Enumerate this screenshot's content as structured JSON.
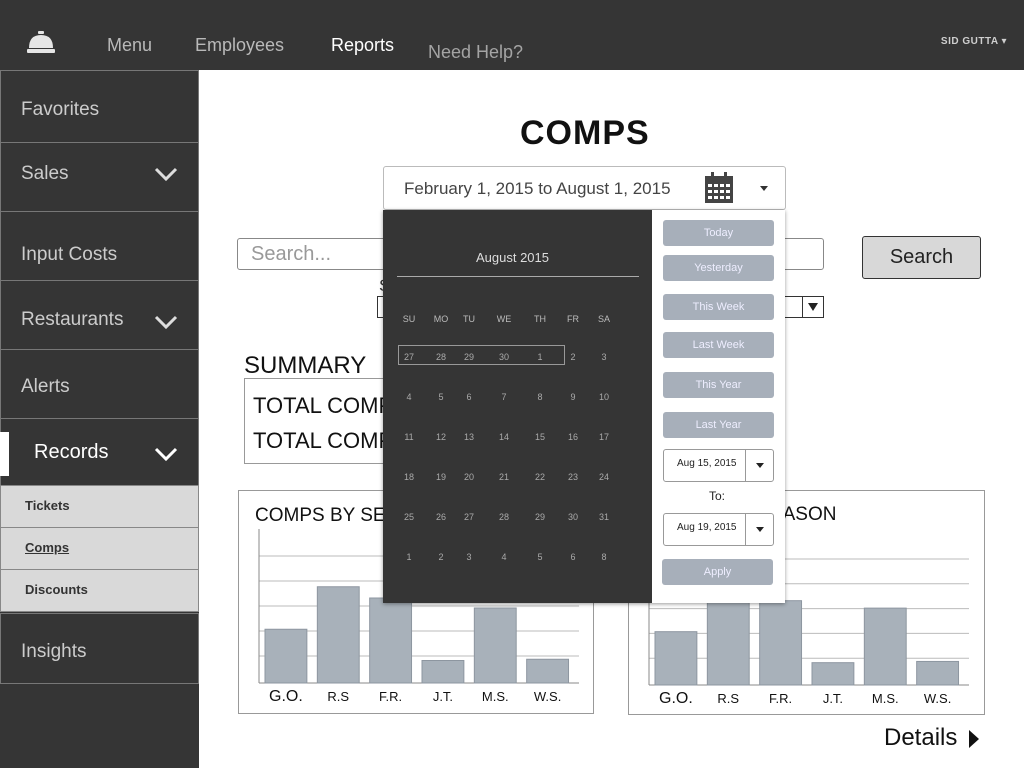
{
  "nav": {
    "items": [
      "Menu",
      "Employees",
      "Reports"
    ],
    "help": "Need Help?",
    "user": "SID GUTTA"
  },
  "sidebar": {
    "items": [
      "Favorites",
      "Sales",
      "Input Costs",
      "Restaurants",
      "Alerts",
      "Records",
      "Insights"
    ],
    "subitems": [
      "Tickets",
      "Comps",
      "Discounts"
    ]
  },
  "page": {
    "title": "COMPS",
    "date_range": "February 1, 2015 to August 1, 2015",
    "search_placeholder": "Search...",
    "search_button": "Search",
    "s_peek": "S",
    "summary_title": "SUMMARY",
    "summary_lines": [
      "TOTAL COMPS",
      "TOTAL COMPS"
    ],
    "details": "Details"
  },
  "calendar": {
    "month": "August 2015",
    "weekdays": [
      "SU",
      "MO",
      "TU",
      "WE",
      "TH",
      "FR",
      "SA"
    ],
    "weeks": [
      [
        "27",
        "28",
        "29",
        "30",
        "1",
        "2",
        "3"
      ],
      [
        "4",
        "5",
        "6",
        "7",
        "8",
        "9",
        "10"
      ],
      [
        "11",
        "12",
        "13",
        "14",
        "15",
        "16",
        "17"
      ],
      [
        "18",
        "19",
        "20",
        "21",
        "22",
        "23",
        "24"
      ],
      [
        "25",
        "26",
        "27",
        "28",
        "29",
        "30",
        "31"
      ],
      [
        "1",
        "2",
        "3",
        "4",
        "5",
        "6",
        "8"
      ]
    ],
    "quick_ranges": [
      "Today",
      "Yesterday",
      "This Week",
      "Last Week",
      "This Year",
      "Last Year"
    ],
    "from_date": "Aug 15, 2015",
    "to_label": "To:",
    "to_date": "Aug 19, 2015",
    "apply": "Apply"
  },
  "chart_data": [
    {
      "type": "bar",
      "title": "COMPS BY SERVER",
      "categories": [
        "G.O.",
        "R.S",
        "F.R.",
        "J.T.",
        "M.S.",
        "W.S."
      ],
      "values": [
        43,
        77,
        68,
        18,
        60,
        19
      ],
      "ylim": [
        0,
        100
      ],
      "grid": true
    },
    {
      "type": "bar",
      "title": "COMPS BY REASON",
      "categories": [
        "G.O.",
        "R.S",
        "F.R.",
        "J.T.",
        "M.S.",
        "W.S."
      ],
      "values": [
        43,
        72,
        68,
        18,
        62,
        19
      ],
      "ylim": [
        0,
        100
      ],
      "grid": true
    }
  ],
  "colors": {
    "bar": "#a8b1ba",
    "dark": "#353535"
  }
}
